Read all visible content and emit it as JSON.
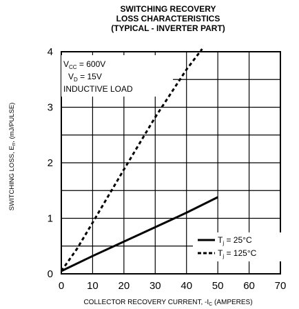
{
  "chart_data": {
    "type": "line",
    "title_lines": [
      "SWITCHING RECOVERY",
      "LOSS CHARACTERISTICS",
      "(TYPICAL - INVERTER PART)"
    ],
    "xlabel_main": "COLLECTOR RECOVERY CURRENT, -I",
    "xlabel_sub": "C",
    "xlabel_tail": " (AMPERES)",
    "ylabel_main": "SWITCHING LOSS, E",
    "ylabel_sub": "rr",
    "ylabel_tail": ", (mJ/PULSE)",
    "xlim": [
      0,
      70
    ],
    "ylim": [
      0,
      4
    ],
    "xticks": [
      0,
      10,
      20,
      30,
      40,
      50,
      60,
      70
    ],
    "yticks": [
      0,
      1,
      2,
      3,
      4
    ],
    "grid": true,
    "conditions": {
      "vcc_main": "V",
      "vcc_sub": "CC",
      "vcc_value": " = 600V",
      "vd_main": "V",
      "vd_sub": "D",
      "vd_value": " = 15V",
      "load": "INDUCTIVE LOAD"
    },
    "series": [
      {
        "name_main": "T",
        "name_sub": "j",
        "name_value": " = 25°C",
        "style": "solid",
        "x": [
          0,
          10,
          20,
          30,
          40,
          50
        ],
        "y": [
          0.05,
          0.32,
          0.58,
          0.84,
          1.1,
          1.38
        ]
      },
      {
        "name_main": "T",
        "name_sub": "j",
        "name_value": " = 125°C",
        "style": "dashed",
        "x": [
          0,
          5,
          10,
          15,
          20,
          25,
          30,
          35,
          40,
          45
        ],
        "y": [
          0.05,
          0.45,
          0.92,
          1.4,
          1.88,
          2.35,
          2.82,
          3.25,
          3.68,
          4.05
        ]
      }
    ],
    "legend_position": "lower-right"
  }
}
